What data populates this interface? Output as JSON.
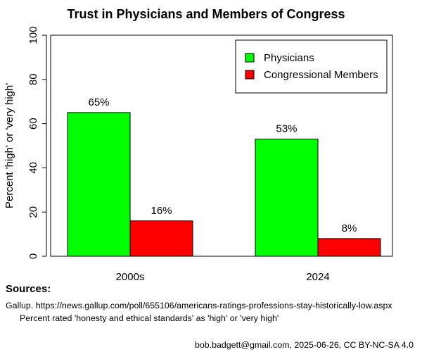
{
  "chart_data": {
    "type": "bar",
    "title": "Trust in Physicians and Members of Congress",
    "xlabel": "",
    "ylabel": "Percent 'high' or 'very high'",
    "categories": [
      "2000s",
      "2024"
    ],
    "series": [
      {
        "name": "Physicians",
        "values": [
          65,
          53
        ],
        "labels": [
          "65%",
          "53%"
        ],
        "color": "#00ff00"
      },
      {
        "name": "Congressional Members",
        "values": [
          16,
          8
        ],
        "labels": [
          "16%",
          "8%"
        ],
        "color": "#ff0000"
      }
    ],
    "ylim": [
      0,
      100
    ],
    "yticks": [
      0,
      20,
      40,
      60,
      80,
      100
    ],
    "grid": false,
    "legend_position": "top-right"
  },
  "sources": {
    "heading": "Sources:",
    "line1": "Gallup. https://news.gallup.com/poll/655106/americans-ratings-professions-stay-historically-low.aspx",
    "line2": "Percent rated 'honesty and ethical standards' as 'high' or 'very high'"
  },
  "credit": "bob.badgett@gmail.com, 2025-06-26, CC BY-NC-SA 4.0"
}
